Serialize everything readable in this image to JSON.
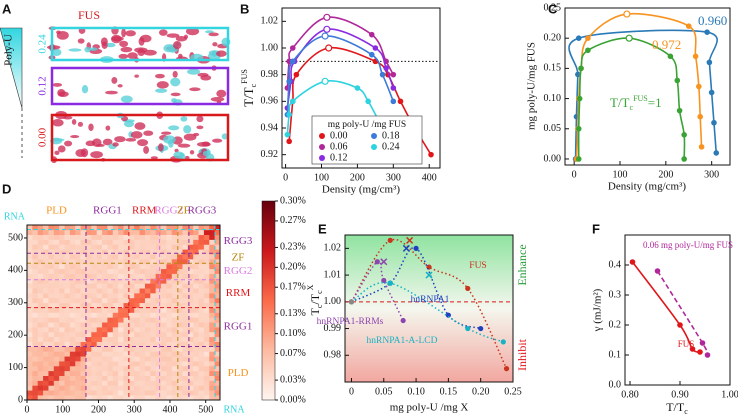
{
  "panel_a": {
    "panel": "A",
    "protein": "FUS",
    "gradient_label": "Poly-U",
    "levels": [
      "0.24",
      "0.12",
      "0.00"
    ],
    "level_colors": [
      "#33d6e0",
      "#8a2be2",
      "#d7191c"
    ]
  },
  "chart_data": [
    {
      "panel": "B",
      "type": "line",
      "xlabel": "Density (mg/cm³)",
      "ylabel": [
        {
          "text": "T/T",
          "pos": "base"
        },
        {
          "text": "c",
          "pos": "sub"
        },
        {
          "text": "FUS",
          "pos": "sup"
        }
      ],
      "xlim": [
        -10,
        430
      ],
      "ylim": [
        0.91,
        1.03
      ],
      "xticks": [
        0,
        100,
        200,
        300,
        400
      ],
      "yticks": [
        0.92,
        0.94,
        0.96,
        0.98,
        {
          "value": 1,
          "label": "1.00"
        },
        1.02
      ],
      "reference_y": 0.99,
      "legend_title": "mg poly-U /mg FUS",
      "series": [
        {
          "name": "0.00",
          "color": "#e0161b",
          "critical_index": 3,
          "x": [
            10,
            20,
            30,
            120,
            250,
            285,
            320,
            360,
            405
          ],
          "values": [
            0.93,
            0.96,
            0.98,
            1.0,
            0.99,
            0.98,
            0.96,
            0.94,
            0.92
          ]
        },
        {
          "name": "0.06",
          "color": "#b0279b",
          "critical_index": 3,
          "x": [
            5,
            10,
            20,
            115,
            240,
            280,
            300
          ],
          "values": [
            0.97,
            0.99,
            1.0,
            1.023,
            1.01,
            0.99,
            0.98
          ]
        },
        {
          "name": "0.12",
          "color": "#8a2be2",
          "critical_index": 3,
          "x": [
            5,
            15,
            25,
            115,
            250,
            280,
            300
          ],
          "values": [
            0.955,
            0.975,
            0.99,
            1.014,
            1.0,
            0.985,
            0.97
          ]
        },
        {
          "name": "0.18",
          "color": "#3c7bd8",
          "critical_index": 3,
          "x": [
            5,
            10,
            20,
            110,
            240,
            270,
            300
          ],
          "values": [
            0.95,
            0.975,
            0.99,
            1.009,
            0.995,
            0.98,
            0.96
          ]
        },
        {
          "name": "0.24",
          "color": "#2ed3e0",
          "critical_index": 3,
          "x": [
            5,
            10,
            20,
            110,
            200,
            230,
            260
          ],
          "values": [
            0.935,
            0.95,
            0.96,
            0.975,
            0.97,
            0.96,
            0.945
          ]
        }
      ]
    },
    {
      "panel": "C",
      "type": "phase",
      "xlabel": "Density (mg/cm³)",
      "ylabel": "mg poly-U/mg FUS",
      "xlim": [
        -20,
        340
      ],
      "ylim": [
        -0.01,
        0.25
      ],
      "xticks": [
        0,
        100,
        200,
        300
      ],
      "yticks": [
        {
          "value": 0,
          "label": "0.00"
        },
        0.05,
        {
          "value": 0.1,
          "label": "0.10"
        },
        0.15,
        {
          "value": 0.2,
          "label": "0.20"
        },
        0.25
      ],
      "series": [
        {
          "name": [
            {
              "text": "0.960",
              "pos": "base"
            }
          ],
          "color": "#2a7ab8",
          "x": [
            3,
            5,
            8,
            10,
            290,
            295,
            300,
            305,
            310
          ],
          "values": [
            0,
            0.07,
            0.14,
            0.2,
            0.21,
            0.16,
            0.11,
            0.06,
            0.01
          ]
        },
        {
          "name": [
            {
              "text": "0.972",
              "pos": "base"
            }
          ],
          "color": "#f7931e",
          "critical_index": 5,
          "x": [
            5,
            8,
            10,
            15,
            30,
            115,
            250,
            265,
            272,
            275,
            278
          ],
          "values": [
            0,
            0.05,
            0.1,
            0.15,
            0.2,
            0.24,
            0.22,
            0.17,
            0.12,
            0.07,
            0.02
          ]
        },
        {
          "name": [
            {
              "text": "T/T",
              "pos": "base"
            },
            {
              "text": "c",
              "pos": "sub"
            },
            {
              "text": "FUS",
              "pos": "sup"
            },
            {
              "text": "=1",
              "pos": "base"
            }
          ],
          "color": "#3aa335",
          "critical_index": 5,
          "x": [
            10,
            10,
            12,
            15,
            30,
            120,
            210,
            225,
            230,
            240,
            240
          ],
          "values": [
            0,
            0.05,
            0.1,
            0.15,
            0.18,
            0.2,
            0.17,
            0.13,
            0.08,
            0.04,
            0
          ]
        }
      ]
    },
    {
      "panel": "D",
      "type": "heatmap",
      "xlim": [
        0,
        540
      ],
      "ylim": [
        0,
        540
      ],
      "xticks": [
        0,
        100,
        200,
        300,
        400,
        500
      ],
      "yticks": [
        0,
        100,
        200,
        300,
        400,
        500
      ],
      "clim": [
        0,
        0.3
      ],
      "colormap": [
        "#fff5f0",
        "#fcbba1",
        "#fb6a4a",
        "#cb181d",
        "#67000d"
      ],
      "colorbar_ticks": [
        {
          "value": 0,
          "label": "0.00%"
        },
        {
          "value": 0.03,
          "label": "0.03%"
        },
        {
          "value": 0.07,
          "label": "0.07%"
        },
        {
          "value": 0.1,
          "label": "0.10%"
        },
        {
          "value": 0.13,
          "label": "0.13%"
        },
        {
          "value": 0.17,
          "label": "0.17%"
        },
        {
          "value": 0.2,
          "label": "0.20%"
        },
        {
          "value": 0.23,
          "label": "0.23%"
        },
        {
          "value": 0.27,
          "label": "0.27%"
        },
        {
          "value": 0.3,
          "label": "0.30%"
        }
      ],
      "domains": [
        {
          "name": "PLD",
          "start": 0,
          "end": 165,
          "color": "#f7931e"
        },
        {
          "name": "RGG1",
          "start": 165,
          "end": 285,
          "color": "#8e2d9e"
        },
        {
          "name": "RRM",
          "start": 285,
          "end": 371,
          "color": "#e0161b"
        },
        {
          "name": "RGG2",
          "start": 371,
          "end": 422,
          "color": "#d97be0"
        },
        {
          "name": "ZF",
          "start": 422,
          "end": 453,
          "color": "#b8860b"
        },
        {
          "name": "RGG3",
          "start": 453,
          "end": 526,
          "color": "#8e2d9e"
        },
        {
          "name": "RNA",
          "start": 526,
          "end": 540,
          "color": "#33d6e0"
        }
      ]
    },
    {
      "panel": "E",
      "type": "scatter",
      "xlabel": "mg poly-U /mg X",
      "ylabel": [
        {
          "text": "T",
          "pos": "base"
        },
        {
          "text": "c",
          "pos": "sub"
        },
        {
          "text": "/T",
          "pos": "base"
        },
        {
          "text": "c",
          "pos": "sub"
        },
        {
          "text": "X",
          "pos": "sup"
        }
      ],
      "xlim": [
        -0.01,
        0.25
      ],
      "ylim": [
        0.97,
        1.025
      ],
      "xticks": [
        0,
        0.05,
        {
          "value": 0.1,
          "label": "0.10"
        },
        0.15,
        {
          "value": 0.2,
          "label": "0.20"
        },
        0.25
      ],
      "yticks": [
        0.98,
        0.99,
        {
          "value": 1,
          "label": "1.00"
        },
        1.01,
        1.02
      ],
      "reference_y": 1,
      "zones": {
        "top": "Enhance",
        "bottom": "Inhibit"
      },
      "series": [
        {
          "name": "FUS",
          "color": "#c8341c",
          "x": [
            0,
            0.06,
            0.12,
            0.18,
            0.24
          ],
          "values": [
            1,
            1.023,
            1.013,
            1.005,
            0.975
          ],
          "peak_x": 0.09,
          "peak_y": 1.023
        },
        {
          "name": "hnRNPA1",
          "color": "#1f3fbf",
          "x": [
            0,
            0.06,
            0.1,
            0.15,
            0.2
          ],
          "values": [
            1,
            1.007,
            1.02,
            0.995,
            0.99
          ],
          "peak_x": 0.085,
          "peak_y": 1.02
        },
        {
          "name": "hnRNPA1-RRMs",
          "color": "#8e44ad",
          "x": [
            0,
            0.04,
            0.05,
            0.08
          ],
          "values": [
            1,
            1.015,
            1.008,
            0.993
          ],
          "peak_x": 0.05,
          "peak_y": 1.015
        },
        {
          "name": "hnRNPA1-A-LCD",
          "color": "#17b3c4",
          "x": [
            0,
            0.06,
            0.18,
            0.235
          ],
          "values": [
            1,
            1.007,
            0.99,
            0.985
          ],
          "peak_x": 0.12,
          "peak_y": 1.01
        }
      ]
    },
    {
      "panel": "F",
      "type": "line",
      "xlabel": [
        {
          "text": "T/T",
          "pos": "base"
        },
        {
          "text": "c",
          "pos": "sub"
        }
      ],
      "ylabel": "γ (mJ/m²)",
      "xlim": [
        0.79,
        1.0
      ],
      "ylim": [
        0,
        0.5
      ],
      "xticks": [
        {
          "value": 0.8,
          "label": "0.80"
        },
        {
          "value": 0.9,
          "label": "0.90"
        },
        {
          "value": 1,
          "label": "1.00"
        }
      ],
      "yticks": [
        {
          "value": 0,
          "label": "0.0"
        },
        0.1,
        0.2,
        0.3,
        0.4
      ],
      "series": [
        {
          "name": "FUS",
          "color": "#e0161b",
          "dashed": false,
          "x": [
            0.805,
            0.9,
            0.925,
            0.94
          ],
          "values": [
            0.41,
            0.2,
            0.12,
            0.11
          ]
        },
        {
          "name": "0.06 mg poly-U/mg FUS",
          "color": "#b0279b",
          "dashed": true,
          "x": [
            0.855,
            0.945,
            0.955
          ],
          "values": [
            0.38,
            0.14,
            0.1
          ]
        }
      ]
    }
  ]
}
